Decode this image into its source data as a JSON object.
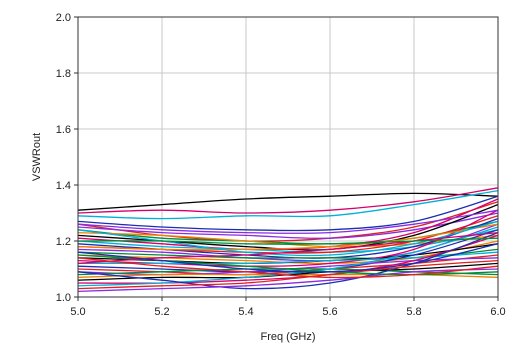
{
  "chart_data": {
    "type": "line",
    "xlabel": "Freq (GHz)",
    "ylabel": "VSWRout",
    "xlim": [
      5.0,
      6.0
    ],
    "ylim": [
      1.0,
      2.0
    ],
    "x_ticks": [
      5.0,
      5.2,
      5.4,
      5.6,
      5.8,
      6.0
    ],
    "x_tick_labels": [
      "5.0",
      "5.2",
      "5.4",
      "5.6",
      "5.8",
      "6.0"
    ],
    "y_ticks": [
      1.0,
      1.2,
      1.4,
      1.6,
      1.8,
      2.0
    ],
    "y_tick_labels": [
      "1.0",
      "1.2",
      "1.4",
      "1.6",
      "1.8",
      "2.0"
    ],
    "grid": true,
    "x": [
      5.0,
      5.2,
      5.4,
      5.6,
      5.8,
      6.0
    ],
    "series": [
      {
        "color": "#000000",
        "values": [
          1.31,
          1.33,
          1.35,
          1.36,
          1.37,
          1.36
        ]
      },
      {
        "color": "#d6006b",
        "values": [
          1.3,
          1.31,
          1.3,
          1.31,
          1.34,
          1.39
        ]
      },
      {
        "color": "#00b0d8",
        "values": [
          1.29,
          1.28,
          1.29,
          1.29,
          1.33,
          1.38
        ]
      },
      {
        "color": "#1a2fb0",
        "values": [
          1.27,
          1.25,
          1.24,
          1.24,
          1.27,
          1.36
        ]
      },
      {
        "color": "#e02020",
        "values": [
          1.26,
          1.22,
          1.2,
          1.21,
          1.25,
          1.34
        ]
      },
      {
        "color": "#8a2be2",
        "values": [
          1.25,
          1.23,
          1.22,
          1.21,
          1.24,
          1.3
        ]
      },
      {
        "color": "#008c3a",
        "values": [
          1.24,
          1.21,
          1.2,
          1.19,
          1.21,
          1.27
        ]
      },
      {
        "color": "#f08000",
        "values": [
          1.23,
          1.22,
          1.2,
          1.18,
          1.19,
          1.22
        ]
      },
      {
        "color": "#000000",
        "values": [
          1.22,
          1.2,
          1.18,
          1.17,
          1.22,
          1.33
        ]
      },
      {
        "color": "#d6006b",
        "values": [
          1.21,
          1.19,
          1.17,
          1.18,
          1.23,
          1.35
        ]
      },
      {
        "color": "#00b0d8",
        "values": [
          1.2,
          1.18,
          1.17,
          1.16,
          1.18,
          1.24
        ]
      },
      {
        "color": "#1a2fb0",
        "values": [
          1.19,
          1.17,
          1.15,
          1.14,
          1.18,
          1.28
        ]
      },
      {
        "color": "#e02020",
        "values": [
          1.18,
          1.17,
          1.16,
          1.16,
          1.2,
          1.29
        ]
      },
      {
        "color": "#8a2be2",
        "values": [
          1.17,
          1.16,
          1.14,
          1.13,
          1.16,
          1.26
        ]
      },
      {
        "color": "#008c3a",
        "values": [
          1.16,
          1.15,
          1.14,
          1.14,
          1.14,
          1.17
        ]
      },
      {
        "color": "#f08000",
        "values": [
          1.15,
          1.14,
          1.13,
          1.12,
          1.14,
          1.2
        ]
      },
      {
        "color": "#000000",
        "values": [
          1.14,
          1.13,
          1.12,
          1.13,
          1.15,
          1.19
        ]
      },
      {
        "color": "#d6006b",
        "values": [
          1.13,
          1.12,
          1.11,
          1.12,
          1.17,
          1.31
        ]
      },
      {
        "color": "#00b0d8",
        "values": [
          1.12,
          1.12,
          1.12,
          1.13,
          1.14,
          1.16
        ]
      },
      {
        "color": "#1a2fb0",
        "values": [
          1.11,
          1.1,
          1.09,
          1.1,
          1.15,
          1.24
        ]
      },
      {
        "color": "#e02020",
        "values": [
          1.1,
          1.09,
          1.08,
          1.1,
          1.12,
          1.15
        ]
      },
      {
        "color": "#8a2be2",
        "values": [
          1.09,
          1.08,
          1.09,
          1.11,
          1.13,
          1.14
        ]
      },
      {
        "color": "#008c3a",
        "values": [
          1.08,
          1.09,
          1.1,
          1.1,
          1.09,
          1.08
        ]
      },
      {
        "color": "#f08000",
        "values": [
          1.07,
          1.08,
          1.08,
          1.08,
          1.08,
          1.07
        ]
      },
      {
        "color": "#000000",
        "values": [
          1.06,
          1.07,
          1.07,
          1.09,
          1.1,
          1.12
        ]
      },
      {
        "color": "#d6006b",
        "values": [
          1.05,
          1.05,
          1.06,
          1.08,
          1.13,
          1.22
        ]
      },
      {
        "color": "#00b0d8",
        "values": [
          1.04,
          1.05,
          1.07,
          1.1,
          1.16,
          1.25
        ]
      },
      {
        "color": "#1a2fb0",
        "values": [
          1.09,
          1.06,
          1.03,
          1.05,
          1.12,
          1.23
        ]
      },
      {
        "color": "#e02020",
        "values": [
          1.03,
          1.04,
          1.05,
          1.08,
          1.11,
          1.13
        ]
      },
      {
        "color": "#8a2be2",
        "values": [
          1.02,
          1.03,
          1.04,
          1.06,
          1.09,
          1.1
        ]
      },
      {
        "color": "#008c3a",
        "values": [
          1.15,
          1.13,
          1.11,
          1.09,
          1.08,
          1.09
        ]
      },
      {
        "color": "#f08000",
        "values": [
          1.18,
          1.17,
          1.17,
          1.18,
          1.21,
          1.26
        ]
      },
      {
        "color": "#00b0d8",
        "values": [
          1.24,
          1.2,
          1.16,
          1.15,
          1.19,
          1.27
        ]
      },
      {
        "color": "#d6006b",
        "values": [
          1.12,
          1.14,
          1.15,
          1.17,
          1.2,
          1.23
        ]
      },
      {
        "color": "#1a2fb0",
        "values": [
          1.16,
          1.13,
          1.1,
          1.09,
          1.12,
          1.19
        ]
      },
      {
        "color": "#008c3a",
        "values": [
          1.2,
          1.2,
          1.19,
          1.19,
          1.2,
          1.21
        ]
      },
      {
        "color": "#e02020",
        "values": [
          1.14,
          1.11,
          1.09,
          1.07,
          1.08,
          1.11
        ]
      },
      {
        "color": "#8a2be2",
        "values": [
          1.26,
          1.24,
          1.23,
          1.23,
          1.26,
          1.31
        ]
      }
    ]
  }
}
